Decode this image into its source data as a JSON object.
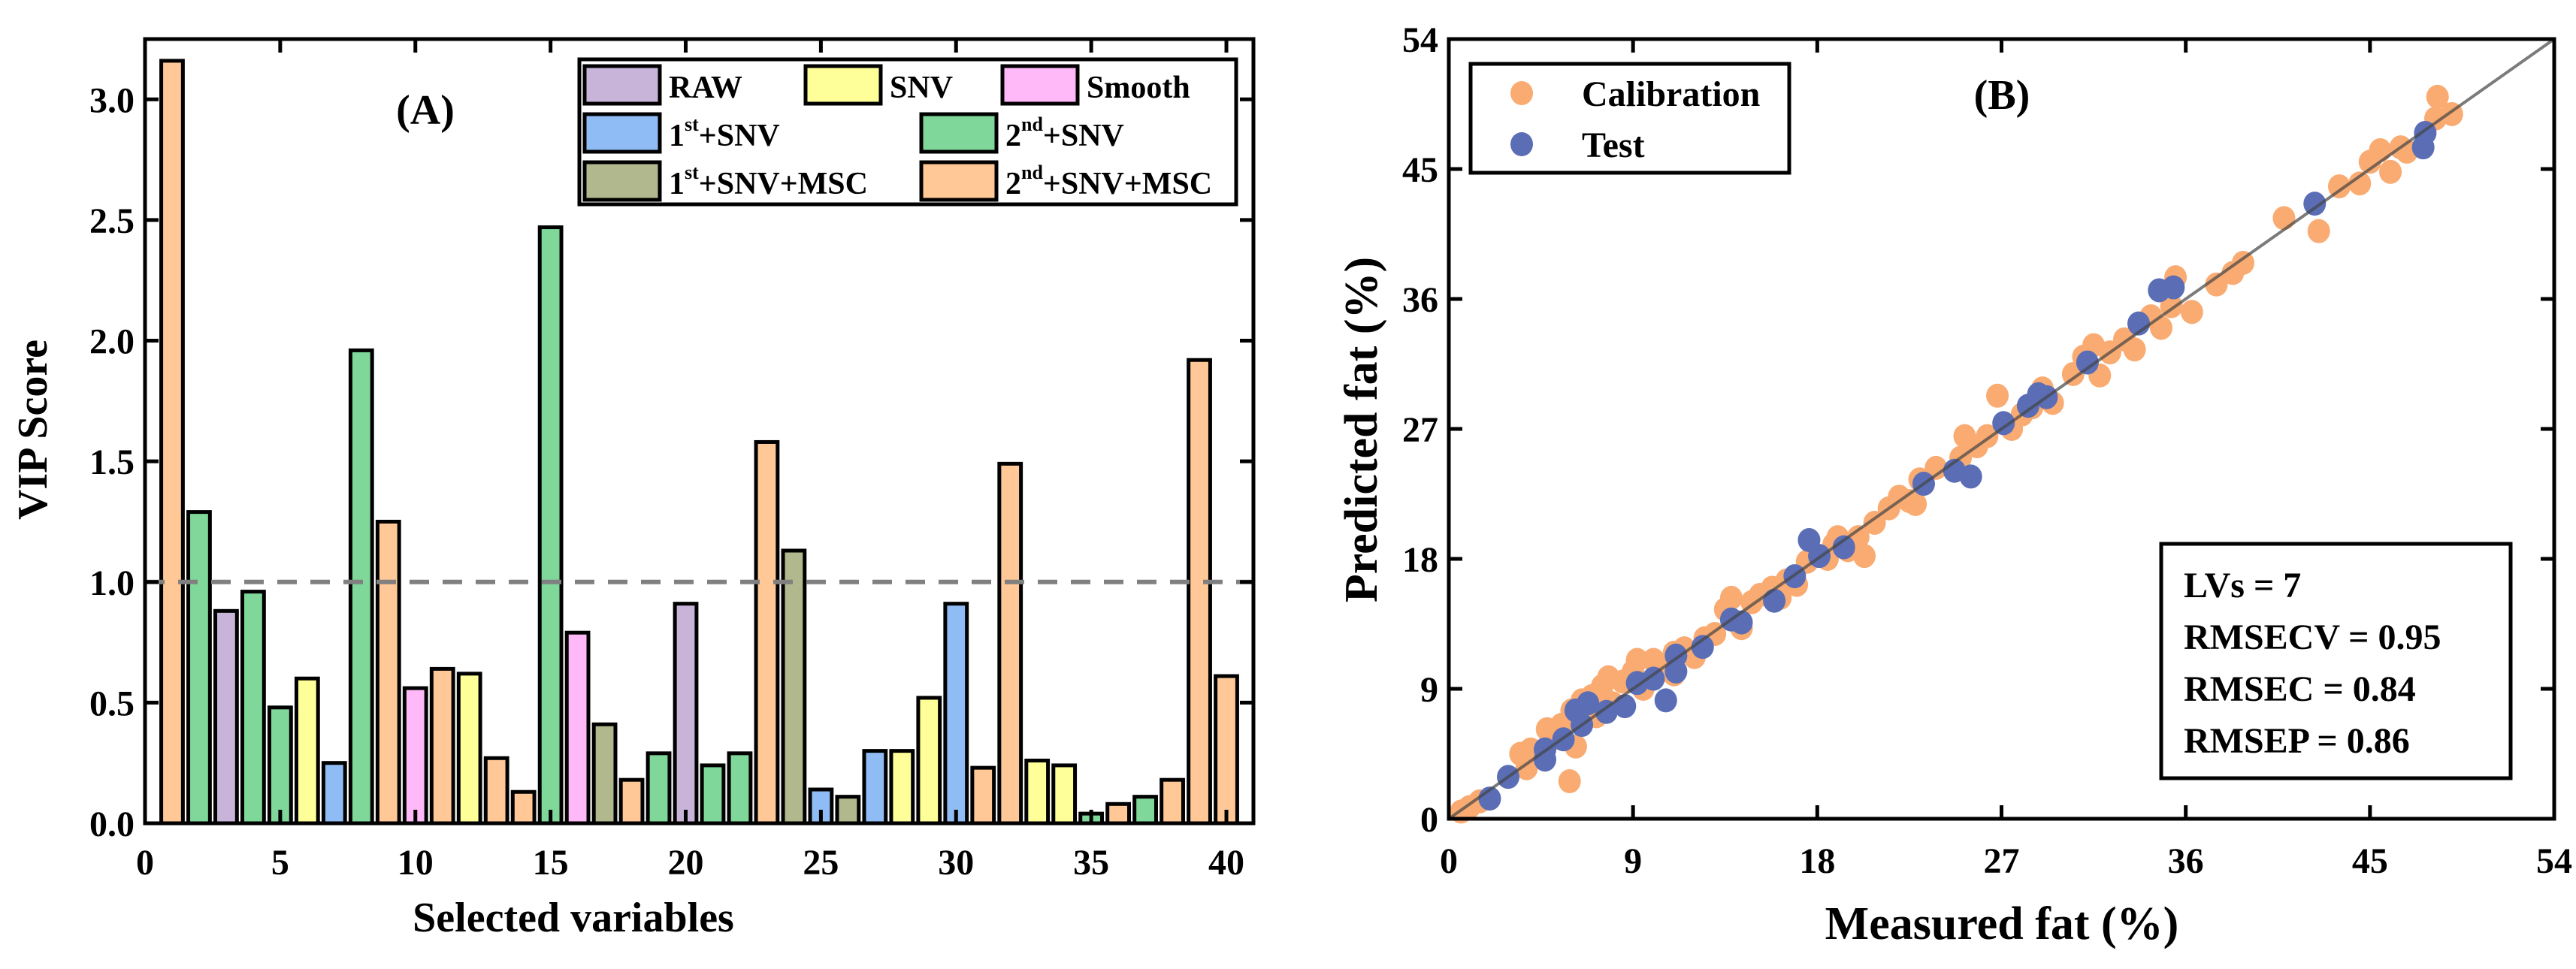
{
  "chart_data": [
    {
      "type": "bar",
      "panel_label": "(A)",
      "xlabel": "Selected variables",
      "ylabel": "VIP Score",
      "xlim": [
        0,
        41
      ],
      "ylim": [
        0,
        3.25
      ],
      "xticks": [
        0,
        5,
        10,
        15,
        20,
        25,
        30,
        35,
        40
      ],
      "yticks": [
        "0.0",
        "0.5",
        "1.0",
        "1.5",
        "2.0",
        "2.5",
        "3.0"
      ],
      "threshold": 1.0,
      "legend_placement": "top-right",
      "legend": [
        {
          "key": "raw",
          "label": "RAW",
          "color": "#c8b4d8"
        },
        {
          "key": "snv",
          "label": "SNV",
          "color": "#ffff99"
        },
        {
          "key": "smooth",
          "label": "Smooth",
          "color": "#ffb8f8"
        },
        {
          "key": "d1snv",
          "label": "1",
          "sup": "st",
          "rest": "+SNV",
          "color": "#8fbcf5"
        },
        {
          "key": "d2snv",
          "label": "2",
          "sup": "nd",
          "rest": "+SNV",
          "color": "#7fd89a"
        },
        {
          "key": "d1snvmsc",
          "label": "1",
          "sup": "st",
          "rest": "+SNV+MSC",
          "color": "#b2b88e"
        },
        {
          "key": "d2snvmsc",
          "label": "2",
          "sup": "nd",
          "rest": "+SNV+MSC",
          "color": "#ffc896"
        }
      ],
      "bars": [
        {
          "x": 1,
          "value": 3.16,
          "group": "d2snvmsc"
        },
        {
          "x": 2,
          "value": 1.29,
          "group": "d2snv"
        },
        {
          "x": 3,
          "value": 0.88,
          "group": "raw"
        },
        {
          "x": 4,
          "value": 0.96,
          "group": "d2snv"
        },
        {
          "x": 5,
          "value": 0.48,
          "group": "d2snv"
        },
        {
          "x": 6,
          "value": 0.6,
          "group": "snv"
        },
        {
          "x": 7,
          "value": 0.25,
          "group": "d1snv"
        },
        {
          "x": 8,
          "value": 1.96,
          "group": "d2snv"
        },
        {
          "x": 9,
          "value": 1.25,
          "group": "d2snvmsc"
        },
        {
          "x": 10,
          "value": 0.56,
          "group": "smooth"
        },
        {
          "x": 11,
          "value": 0.64,
          "group": "d2snvmsc"
        },
        {
          "x": 12,
          "value": 0.62,
          "group": "snv"
        },
        {
          "x": 13,
          "value": 0.27,
          "group": "d2snvmsc"
        },
        {
          "x": 14,
          "value": 0.13,
          "group": "d2snvmsc"
        },
        {
          "x": 15,
          "value": 2.47,
          "group": "d2snv"
        },
        {
          "x": 16,
          "value": 0.79,
          "group": "smooth"
        },
        {
          "x": 17,
          "value": 0.41,
          "group": "d1snvmsc"
        },
        {
          "x": 18,
          "value": 0.18,
          "group": "d2snvmsc"
        },
        {
          "x": 19,
          "value": 0.29,
          "group": "d2snv"
        },
        {
          "x": 20,
          "value": 0.91,
          "group": "raw"
        },
        {
          "x": 21,
          "value": 0.24,
          "group": "d2snv"
        },
        {
          "x": 22,
          "value": 0.29,
          "group": "d2snv"
        },
        {
          "x": 23,
          "value": 1.58,
          "group": "d2snvmsc"
        },
        {
          "x": 24,
          "value": 1.13,
          "group": "d1snvmsc"
        },
        {
          "x": 25,
          "value": 0.14,
          "group": "d1snv"
        },
        {
          "x": 26,
          "value": 0.11,
          "group": "d1snvmsc"
        },
        {
          "x": 27,
          "value": 0.3,
          "group": "d1snv"
        },
        {
          "x": 28,
          "value": 0.3,
          "group": "snv"
        },
        {
          "x": 29,
          "value": 0.52,
          "group": "snv"
        },
        {
          "x": 30,
          "value": 0.91,
          "group": "d1snv"
        },
        {
          "x": 31,
          "value": 0.23,
          "group": "d2snvmsc"
        },
        {
          "x": 32,
          "value": 1.49,
          "group": "d2snvmsc"
        },
        {
          "x": 33,
          "value": 0.26,
          "group": "snv"
        },
        {
          "x": 34,
          "value": 0.24,
          "group": "snv"
        },
        {
          "x": 35,
          "value": 0.04,
          "group": "d2snv"
        },
        {
          "x": 36,
          "value": 0.08,
          "group": "d2snvmsc"
        },
        {
          "x": 37,
          "value": 0.11,
          "group": "d2snv"
        },
        {
          "x": 38,
          "value": 0.18,
          "group": "d2snvmsc"
        },
        {
          "x": 39,
          "value": 1.92,
          "group": "d2snvmsc"
        },
        {
          "x": 40,
          "value": 0.61,
          "group": "d2snvmsc"
        }
      ]
    },
    {
      "type": "scatter",
      "panel_label": "(B)",
      "xlabel": "Measured fat (%)",
      "ylabel": "Predicted fat (%)",
      "xlim": [
        0,
        54
      ],
      "ylim": [
        0,
        54
      ],
      "xticks": [
        0,
        9,
        18,
        27,
        36,
        45,
        54
      ],
      "yticks": [
        0,
        9,
        18,
        27,
        36,
        45,
        54
      ],
      "identity_line": true,
      "legend_placement": "top-left",
      "stats": [
        "LVs = 7",
        "RMSECV = 0.95",
        "RMSEC = 0.84",
        "RMSEP = 0.86"
      ],
      "series": [
        {
          "name": "Calibration",
          "color": "#f9ab72",
          "points": [
            [
              0.6,
              0.5
            ],
            [
              1,
              0.8
            ],
            [
              1.5,
              1.2
            ],
            [
              3.5,
              4.5
            ],
            [
              4,
              4.8
            ],
            [
              3.8,
              3.5
            ],
            [
              4.8,
              6.2
            ],
            [
              5.2,
              5.6
            ],
            [
              5.5,
              6.5
            ],
            [
              6,
              7.5
            ],
            [
              6.2,
              5.0
            ],
            [
              5.9,
              2.6
            ],
            [
              6.5,
              8.2
            ],
            [
              7,
              8.5
            ],
            [
              7.2,
              7.1
            ],
            [
              7.5,
              9.2
            ],
            [
              7.8,
              9.8
            ],
            [
              8,
              8.0
            ],
            [
              8.5,
              9.5
            ],
            [
              9,
              10.2
            ],
            [
              9.2,
              11.0
            ],
            [
              9.5,
              9.0
            ],
            [
              10,
              11.0
            ],
            [
              10.5,
              10.3
            ],
            [
              11,
              11.5
            ],
            [
              11,
              10.0
            ],
            [
              11.5,
              11.8
            ],
            [
              12,
              11.2
            ],
            [
              12.5,
              12.5
            ],
            [
              13,
              12.8
            ],
            [
              13.5,
              14.5
            ],
            [
              13.8,
              15.3
            ],
            [
              14.3,
              13.2
            ],
            [
              14.8,
              15.0
            ],
            [
              15.2,
              15.5
            ],
            [
              15.8,
              16.0
            ],
            [
              16.2,
              15.3
            ],
            [
              16.5,
              16.5
            ],
            [
              17,
              16.2
            ],
            [
              17.5,
              17.8
            ],
            [
              18.5,
              18.0
            ],
            [
              18.8,
              19.0
            ],
            [
              19,
              19.5
            ],
            [
              19.5,
              18.6
            ],
            [
              20,
              19.5
            ],
            [
              20.3,
              18.2
            ],
            [
              20.8,
              20.5
            ],
            [
              21.5,
              21.5
            ],
            [
              22,
              22.3
            ],
            [
              22.5,
              22.0
            ],
            [
              23,
              23.5
            ],
            [
              22.8,
              21.8
            ],
            [
              23.8,
              24.3
            ],
            [
              25,
              25.0
            ],
            [
              25.2,
              26.5
            ],
            [
              25.8,
              25.8
            ],
            [
              26.3,
              26.5
            ],
            [
              26.8,
              29.3
            ],
            [
              27.5,
              27.0
            ],
            [
              28,
              28.0
            ],
            [
              28.5,
              28.5
            ],
            [
              29,
              29.8
            ],
            [
              29.5,
              28.8
            ],
            [
              30.5,
              30.8
            ],
            [
              31,
              32.0
            ],
            [
              31.5,
              32.8
            ],
            [
              31.8,
              30.7
            ],
            [
              32.3,
              32.3
            ],
            [
              33,
              33.2
            ],
            [
              33.5,
              32.5
            ],
            [
              34.3,
              34.8
            ],
            [
              34.8,
              34.0
            ],
            [
              35.3,
              35.5
            ],
            [
              35.5,
              37.5
            ],
            [
              36.3,
              35.1
            ],
            [
              37.5,
              37.0
            ],
            [
              38.3,
              37.8
            ],
            [
              38.8,
              38.5
            ],
            [
              40.8,
              41.6
            ],
            [
              42.5,
              40.7
            ],
            [
              43.5,
              43.8
            ],
            [
              44.5,
              44.0
            ],
            [
              45,
              45.5
            ],
            [
              45.5,
              46.3
            ],
            [
              46,
              44.8
            ],
            [
              46.5,
              46.5
            ],
            [
              46.8,
              46.2
            ],
            [
              48.2,
              48.5
            ],
            [
              48.3,
              50.0
            ],
            [
              49,
              48.8
            ]
          ]
        },
        {
          "name": "Test",
          "color": "#5a6db5",
          "points": [
            [
              2.0,
              1.4
            ],
            [
              2.9,
              2.9
            ],
            [
              4.7,
              4.1
            ],
            [
              4.7,
              4.8
            ],
            [
              5.6,
              5.5
            ],
            [
              6.2,
              7.5
            ],
            [
              6.5,
              6.5
            ],
            [
              6.8,
              8.0
            ],
            [
              7.7,
              7.4
            ],
            [
              8.6,
              7.8
            ],
            [
              9.2,
              9.4
            ],
            [
              10.0,
              9.7
            ],
            [
              10.6,
              8.2
            ],
            [
              11.1,
              10.2
            ],
            [
              11.1,
              11.3
            ],
            [
              12.4,
              11.9
            ],
            [
              13.8,
              13.8
            ],
            [
              14.3,
              13.6
            ],
            [
              15.9,
              15.1
            ],
            [
              16.9,
              16.8
            ],
            [
              17.6,
              19.3
            ],
            [
              18.1,
              18.2
            ],
            [
              19.3,
              18.8
            ],
            [
              23.2,
              23.2
            ],
            [
              24.7,
              24.1
            ],
            [
              25.5,
              23.7
            ],
            [
              27.1,
              27.4
            ],
            [
              28.3,
              28.6
            ],
            [
              28.8,
              29.4
            ],
            [
              29.2,
              29.2
            ],
            [
              31.2,
              31.6
            ],
            [
              33.7,
              34.3
            ],
            [
              34.7,
              36.6
            ],
            [
              35.4,
              36.8
            ],
            [
              42.3,
              42.6
            ],
            [
              47.6,
              46.5
            ],
            [
              47.7,
              47.5
            ]
          ]
        }
      ]
    }
  ]
}
